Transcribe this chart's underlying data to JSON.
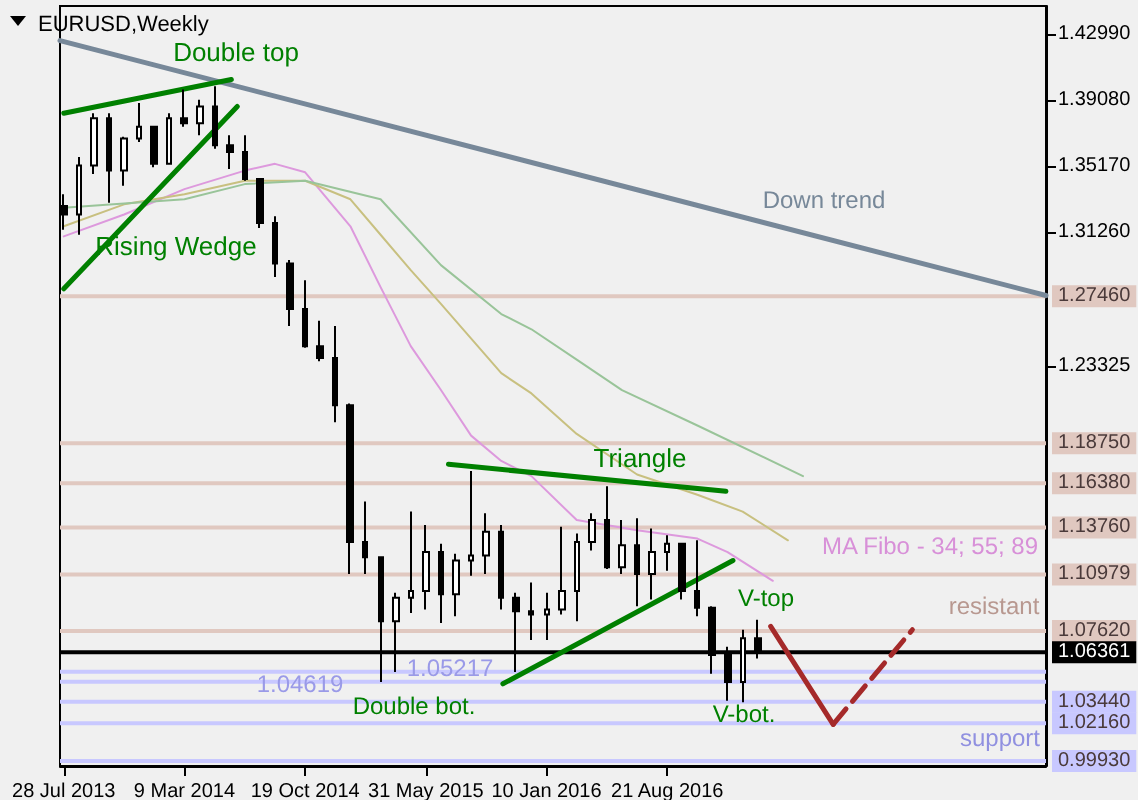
{
  "chart_data": {
    "type": "candlestick",
    "title": "EURUSD,Weekly",
    "color": "#000000",
    "grid": false,
    "x": [
      "2013-07-28",
      "2013-08-25",
      "2013-09-22",
      "2013-10-20",
      "2013-11-17",
      "2013-12-15",
      "2014-01-12",
      "2014-02-09",
      "2014-03-09",
      "2014-04-06",
      "2014-05-04",
      "2014-06-01",
      "2014-06-29",
      "2014-07-27",
      "2014-08-24",
      "2014-09-21",
      "2014-10-19",
      "2014-11-16",
      "2014-12-14",
      "2015-01-11",
      "2015-02-08",
      "2015-03-08",
      "2015-04-05",
      "2015-05-03",
      "2015-05-31",
      "2015-06-28",
      "2015-07-26",
      "2015-08-23",
      "2015-09-20",
      "2015-10-18",
      "2015-11-15",
      "2015-12-13",
      "2016-01-10",
      "2016-02-07",
      "2016-03-06",
      "2016-04-03",
      "2016-05-01",
      "2016-05-29",
      "2016-06-26",
      "2016-07-24",
      "2016-08-21",
      "2016-09-18",
      "2016-10-16",
      "2016-11-13",
      "2016-12-11",
      "2017-01-08",
      "2017-02-05"
    ],
    "ohlc": [
      [
        1.328,
        1.335,
        1.314,
        1.323
      ],
      [
        1.323,
        1.357,
        1.311,
        1.352
      ],
      [
        1.352,
        1.383,
        1.347,
        1.38
      ],
      [
        1.38,
        1.383,
        1.33,
        1.349
      ],
      [
        1.349,
        1.369,
        1.34,
        1.368
      ],
      [
        1.368,
        1.389,
        1.366,
        1.375
      ],
      [
        1.375,
        1.375,
        1.351,
        1.353
      ],
      [
        1.353,
        1.383,
        1.353,
        1.38
      ],
      [
        1.38,
        1.397,
        1.375,
        1.377
      ],
      [
        1.377,
        1.391,
        1.37,
        1.387
      ],
      [
        1.387,
        1.399,
        1.362,
        1.364
      ],
      [
        1.364,
        1.37,
        1.35,
        1.36
      ],
      [
        1.36,
        1.37,
        1.343,
        1.344
      ],
      [
        1.344,
        1.344,
        1.315,
        1.318
      ],
      [
        1.318,
        1.322,
        1.286,
        1.294
      ],
      [
        1.294,
        1.296,
        1.257,
        1.267
      ],
      [
        1.267,
        1.284,
        1.244,
        1.245
      ],
      [
        1.245,
        1.26,
        1.236,
        1.238
      ],
      [
        1.238,
        1.257,
        1.2,
        1.21
      ],
      [
        1.21,
        1.211,
        1.11,
        1.129
      ],
      [
        1.129,
        1.153,
        1.11,
        1.12
      ],
      [
        1.12,
        1.12,
        1.046,
        1.082
      ],
      [
        1.082,
        1.099,
        1.052,
        1.096
      ],
      [
        1.096,
        1.147,
        1.087,
        1.1
      ],
      [
        1.1,
        1.139,
        1.089,
        1.123
      ],
      [
        1.123,
        1.128,
        1.081,
        1.098
      ],
      [
        1.098,
        1.122,
        1.085,
        1.118
      ],
      [
        1.118,
        1.171,
        1.109,
        1.121
      ],
      [
        1.121,
        1.146,
        1.11,
        1.135
      ],
      [
        1.135,
        1.139,
        1.089,
        1.096
      ],
      [
        1.096,
        1.099,
        1.052,
        1.088
      ],
      [
        1.088,
        1.105,
        1.071,
        1.086
      ],
      [
        1.086,
        1.099,
        1.071,
        1.089
      ],
      [
        1.089,
        1.138,
        1.086,
        1.1
      ],
      [
        1.1,
        1.134,
        1.082,
        1.129
      ],
      [
        1.129,
        1.146,
        1.124,
        1.142
      ],
      [
        1.142,
        1.162,
        1.113,
        1.114
      ],
      [
        1.114,
        1.142,
        1.11,
        1.127
      ],
      [
        1.127,
        1.143,
        1.091,
        1.11
      ],
      [
        1.11,
        1.137,
        1.095,
        1.123
      ],
      [
        1.123,
        1.133,
        1.112,
        1.128
      ],
      [
        1.128,
        1.128,
        1.095,
        1.1
      ],
      [
        1.1,
        1.13,
        1.085,
        1.09
      ],
      [
        1.09,
        1.091,
        1.051,
        1.062
      ],
      [
        1.062,
        1.067,
        1.035,
        1.046
      ],
      [
        1.046,
        1.077,
        1.034,
        1.072
      ],
      [
        1.072,
        1.083,
        1.06,
        1.064
      ]
    ],
    "xlim": [
      "2013-07-21",
      "2018-07-25"
    ],
    "ylim": [
      0.9963,
      1.4465
    ],
    "xticks": [
      {
        "value": "2013-07-28",
        "label": "28 Jul 2013"
      },
      {
        "value": "2014-03-09",
        "label": "9 Mar 2014"
      },
      {
        "value": "2014-10-19",
        "label": "19 Oct 2014"
      },
      {
        "value": "2015-05-31",
        "label": "31 May 2015"
      },
      {
        "value": "2016-01-10",
        "label": "10 Jan 2016"
      },
      {
        "value": "2016-08-21",
        "label": "21 Aug 2016"
      }
    ],
    "yticks": [
      {
        "value": 1.4299,
        "label": "1.42990"
      },
      {
        "value": 1.3908,
        "label": "1.39080"
      },
      {
        "value": 1.3517,
        "label": "1.35170"
      },
      {
        "value": 1.3126,
        "label": "1.31260"
      },
      {
        "value": 1.23325,
        "label": "1.23325"
      }
    ],
    "series": [
      {
        "type": "line",
        "color": "#dd99dd",
        "x": [
          "2013-07-28",
          "2013-11-17",
          "2014-03-09",
          "2014-06-29",
          "2014-08-24",
          "2014-10-19",
          "2015-01-11",
          "2015-03-08",
          "2015-05-03",
          "2015-06-28",
          "2015-08-23",
          "2015-10-18",
          "2015-12-13",
          "2016-03-06",
          "2016-06-26",
          "2016-10-16",
          "2016-12-11",
          "2017-03-05"
        ],
        "values": [
          1.31,
          1.323,
          1.338,
          1.349,
          1.353,
          1.348,
          1.316,
          1.28,
          1.245,
          1.219,
          1.192,
          1.177,
          1.168,
          1.142,
          1.136,
          1.131,
          1.123,
          1.106
        ]
      },
      {
        "type": "line",
        "color": "#c8c080",
        "x": [
          "2013-07-28",
          "2013-11-17",
          "2014-03-09",
          "2014-06-29",
          "2014-10-19",
          "2015-01-11",
          "2015-03-08",
          "2015-05-03",
          "2015-06-28",
          "2015-10-18",
          "2015-12-13",
          "2016-03-06",
          "2016-06-26",
          "2016-10-16",
          "2017-01-08",
          "2017-04-02"
        ],
        "values": [
          1.316,
          1.329,
          1.335,
          1.343,
          1.343,
          1.332,
          1.311,
          1.29,
          1.27,
          1.229,
          1.217,
          1.193,
          1.169,
          1.157,
          1.147,
          1.13
        ]
      },
      {
        "type": "line",
        "color": "#99c499",
        "x": [
          "2013-07-28",
          "2014-03-09",
          "2014-06-29",
          "2014-10-19",
          "2015-03-08",
          "2015-06-28",
          "2015-10-18",
          "2015-12-13",
          "2016-03-06",
          "2016-05-29",
          "2016-10-16",
          "2017-04-30"
        ],
        "values": [
          1.327,
          1.332,
          1.341,
          1.343,
          1.332,
          1.293,
          1.264,
          1.255,
          1.237,
          1.219,
          1.198,
          1.168
        ]
      },
      {
        "type": "line",
        "color": "#778899",
        "x": [
          "2013-07-21",
          "2018-07-25"
        ],
        "values": [
          1.426,
          1.275
        ]
      },
      {
        "type": "line",
        "color": "#008000",
        "x": [
          "2013-07-28",
          "2014-06-04"
        ],
        "values": [
          1.383,
          1.403
        ]
      },
      {
        "type": "line",
        "color": "#008000",
        "x": [
          "2013-07-28",
          "2014-06-15"
        ],
        "values": [
          1.279,
          1.387
        ]
      },
      {
        "type": "line",
        "color": "#008000",
        "x": [
          "2015-07-12",
          "2016-12-08"
        ],
        "values": [
          1.175,
          1.159
        ]
      },
      {
        "type": "line",
        "color": "#008000",
        "x": [
          "2015-10-21",
          "2016-12-21"
        ],
        "values": [
          1.045,
          1.118
        ]
      },
      {
        "type": "line",
        "color": "#a52a2a",
        "x": [
          "2017-03-01",
          "2017-06-25"
        ],
        "values": [
          1.079,
          1.021
        ]
      },
      {
        "type": "line",
        "color": "#a52a2a",
        "line_style": "dashed",
        "x": [
          "2017-06-25",
          "2017-11-19"
        ],
        "values": [
          1.021,
          1.077
        ]
      }
    ],
    "ref_lines": [
      {
        "axis": "y",
        "value": 1.2746,
        "label": "1.27460",
        "color": "#e0c8c0"
      },
      {
        "axis": "y",
        "value": 1.1875,
        "label": "1.18750",
        "color": "#e0c8c0"
      },
      {
        "axis": "y",
        "value": 1.1638,
        "label": "1.16380",
        "color": "#e0c8c0"
      },
      {
        "axis": "y",
        "value": 1.1376,
        "label": "1.13760",
        "color": "#e0c8c0"
      },
      {
        "axis": "y",
        "value": 1.10979,
        "label": "1.10979",
        "color": "#e0c8c0"
      },
      {
        "axis": "y",
        "value": 1.0762,
        "label": "1.07620",
        "color": "#e0c8c0"
      },
      {
        "axis": "y",
        "value": 1.06361,
        "label": "1.06361",
        "color": "#000000"
      },
      {
        "axis": "y",
        "value": 1.05217,
        "color": "#c8c8ff"
      },
      {
        "axis": "y",
        "value": 1.04619,
        "color": "#c8c8ff"
      },
      {
        "axis": "y",
        "value": 1.0344,
        "label": "1.03440",
        "color": "#c8c8ff"
      },
      {
        "axis": "y",
        "value": 1.0216,
        "label": "1.02160",
        "color": "#c8c8ff"
      },
      {
        "axis": "y",
        "value": 0.9993,
        "label": "0.99930",
        "color": "#c8c8ff"
      }
    ],
    "annotations": [
      "Double top",
      "Rising Wedge",
      "Down trend",
      "Triangle",
      "MA Fibo - 34; 55; 89",
      "V-top",
      "V-bot.",
      "Double bot.",
      "resistant",
      "support",
      "1.04619",
      "1.05217"
    ]
  }
}
